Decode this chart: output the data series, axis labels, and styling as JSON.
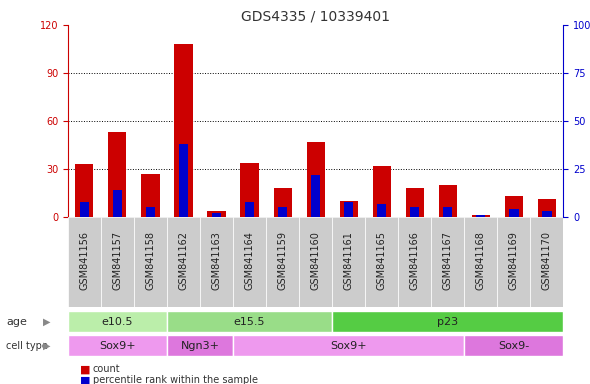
{
  "title": "GDS4335 / 10339401",
  "samples": [
    "GSM841156",
    "GSM841157",
    "GSM841158",
    "GSM841162",
    "GSM841163",
    "GSM841164",
    "GSM841159",
    "GSM841160",
    "GSM841161",
    "GSM841165",
    "GSM841166",
    "GSM841167",
    "GSM841168",
    "GSM841169",
    "GSM841170"
  ],
  "counts": [
    33,
    53,
    27,
    108,
    4,
    34,
    18,
    47,
    10,
    32,
    18,
    20,
    1,
    13,
    11
  ],
  "percentiles": [
    8,
    14,
    5,
    38,
    2,
    8,
    5,
    22,
    8,
    7,
    5,
    5,
    1,
    4,
    3
  ],
  "ylim_left": [
    0,
    120
  ],
  "ylim_right": [
    0,
    100
  ],
  "yticks_left": [
    0,
    30,
    60,
    90,
    120
  ],
  "yticks_right": [
    0,
    25,
    50,
    75,
    100
  ],
  "yticklabels_right": [
    "0",
    "25",
    "50",
    "75",
    "100%"
  ],
  "bar_color_red": "#cc0000",
  "bar_color_blue": "#0000cc",
  "age_groups": [
    {
      "label": "e10.5",
      "start": 0,
      "end": 3,
      "color": "#bbeeaa"
    },
    {
      "label": "e15.5",
      "start": 3,
      "end": 8,
      "color": "#99dd88"
    },
    {
      "label": "p23",
      "start": 8,
      "end": 15,
      "color": "#55cc44"
    }
  ],
  "cell_type_groups": [
    {
      "label": "Sox9+",
      "start": 0,
      "end": 3,
      "color": "#ee99ee"
    },
    {
      "label": "Ngn3+",
      "start": 3,
      "end": 5,
      "color": "#dd77dd"
    },
    {
      "label": "Sox9+",
      "start": 5,
      "end": 12,
      "color": "#ee99ee"
    },
    {
      "label": "Sox9-",
      "start": 12,
      "end": 15,
      "color": "#dd77dd"
    }
  ],
  "legend_count_label": "count",
  "legend_pct_label": "percentile rank within the sample",
  "background_color": "#ffffff",
  "left_label_color": "#cc0000",
  "right_label_color": "#0000cc",
  "xtick_bg_color": "#cccccc",
  "title_fontsize": 10,
  "tick_fontsize": 7,
  "label_fontsize": 8,
  "row_label_fontsize": 8,
  "group_fontsize": 8
}
